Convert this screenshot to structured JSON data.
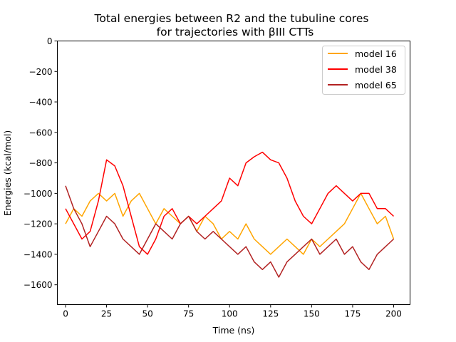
{
  "chart_data": {
    "type": "line",
    "title_line1": "Total energies between R2 and the tubuline cores",
    "title_line2": "for trajectories with βIII CTTs",
    "xlabel": "Time (ns)",
    "ylabel": "Energies (kcal/mol)",
    "xlim": [
      -5,
      210
    ],
    "ylim": [
      -1730,
      0
    ],
    "x_ticks": [
      0,
      25,
      50,
      75,
      100,
      125,
      150,
      175,
      200
    ],
    "y_ticks": [
      0,
      -200,
      -400,
      -600,
      -800,
      -1000,
      -1200,
      -1400,
      -1600
    ],
    "x_tick_labels": [
      "0",
      "25",
      "50",
      "75",
      "100",
      "125",
      "150",
      "175",
      "200"
    ],
    "y_tick_labels": [
      "0",
      "−200",
      "−400",
      "−600",
      "−800",
      "−1000",
      "−1200",
      "−1400",
      "−1600"
    ],
    "grid": false,
    "legend_position": "top-right",
    "series": [
      {
        "name": "model 16",
        "color": "#ffa500",
        "x": [
          0,
          5,
          10,
          15,
          20,
          25,
          30,
          35,
          40,
          45,
          50,
          55,
          60,
          65,
          70,
          75,
          80,
          85,
          90,
          95,
          100,
          105,
          110,
          115,
          120,
          125,
          130,
          135,
          140,
          145,
          150,
          155,
          160,
          165,
          170,
          175,
          180,
          185,
          190,
          195,
          200
        ],
        "y": [
          -1200,
          -1100,
          -1150,
          -1050,
          -1000,
          -1050,
          -1000,
          -1150,
          -1050,
          -1000,
          -1100,
          -1200,
          -1100,
          -1150,
          -1200,
          -1150,
          -1250,
          -1150,
          -1200,
          -1300,
          -1250,
          -1300,
          -1200,
          -1300,
          -1350,
          -1400,
          -1350,
          -1300,
          -1350,
          -1400,
          -1300,
          -1350,
          -1300,
          -1250,
          -1200,
          -1100,
          -1000,
          -1100,
          -1200,
          -1150,
          -1300
        ]
      },
      {
        "name": "model 38",
        "color": "#ff0000",
        "x": [
          0,
          5,
          10,
          15,
          20,
          25,
          30,
          35,
          40,
          45,
          50,
          55,
          60,
          65,
          70,
          75,
          80,
          85,
          90,
          95,
          100,
          105,
          110,
          115,
          120,
          125,
          130,
          135,
          140,
          145,
          150,
          155,
          160,
          165,
          170,
          175,
          180,
          185,
          190,
          195,
          200
        ],
        "y": [
          -1100,
          -1200,
          -1300,
          -1250,
          -1050,
          -780,
          -820,
          -950,
          -1150,
          -1350,
          -1400,
          -1300,
          -1150,
          -1100,
          -1200,
          -1150,
          -1200,
          -1150,
          -1100,
          -1050,
          -900,
          -950,
          -800,
          -760,
          -730,
          -780,
          -800,
          -900,
          -1050,
          -1150,
          -1200,
          -1100,
          -1000,
          -950,
          -1000,
          -1050,
          -1000,
          -1000,
          -1100,
          -1100,
          -1150
        ]
      },
      {
        "name": "model 65",
        "color": "#b22222",
        "x": [
          0,
          5,
          10,
          15,
          20,
          25,
          30,
          35,
          40,
          45,
          50,
          55,
          60,
          65,
          70,
          75,
          80,
          85,
          90,
          95,
          100,
          105,
          110,
          115,
          120,
          125,
          130,
          135,
          140,
          145,
          150,
          155,
          160,
          165,
          170,
          175,
          180,
          185,
          190,
          195,
          200
        ],
        "y": [
          -950,
          -1100,
          -1200,
          -1350,
          -1250,
          -1150,
          -1200,
          -1300,
          -1350,
          -1400,
          -1300,
          -1200,
          -1250,
          -1300,
          -1200,
          -1150,
          -1250,
          -1300,
          -1250,
          -1300,
          -1350,
          -1400,
          -1350,
          -1450,
          -1500,
          -1450,
          -1550,
          -1450,
          -1400,
          -1350,
          -1300,
          -1400,
          -1350,
          -1300,
          -1400,
          -1350,
          -1450,
          -1500,
          -1400,
          -1350,
          -1300
        ]
      }
    ]
  }
}
